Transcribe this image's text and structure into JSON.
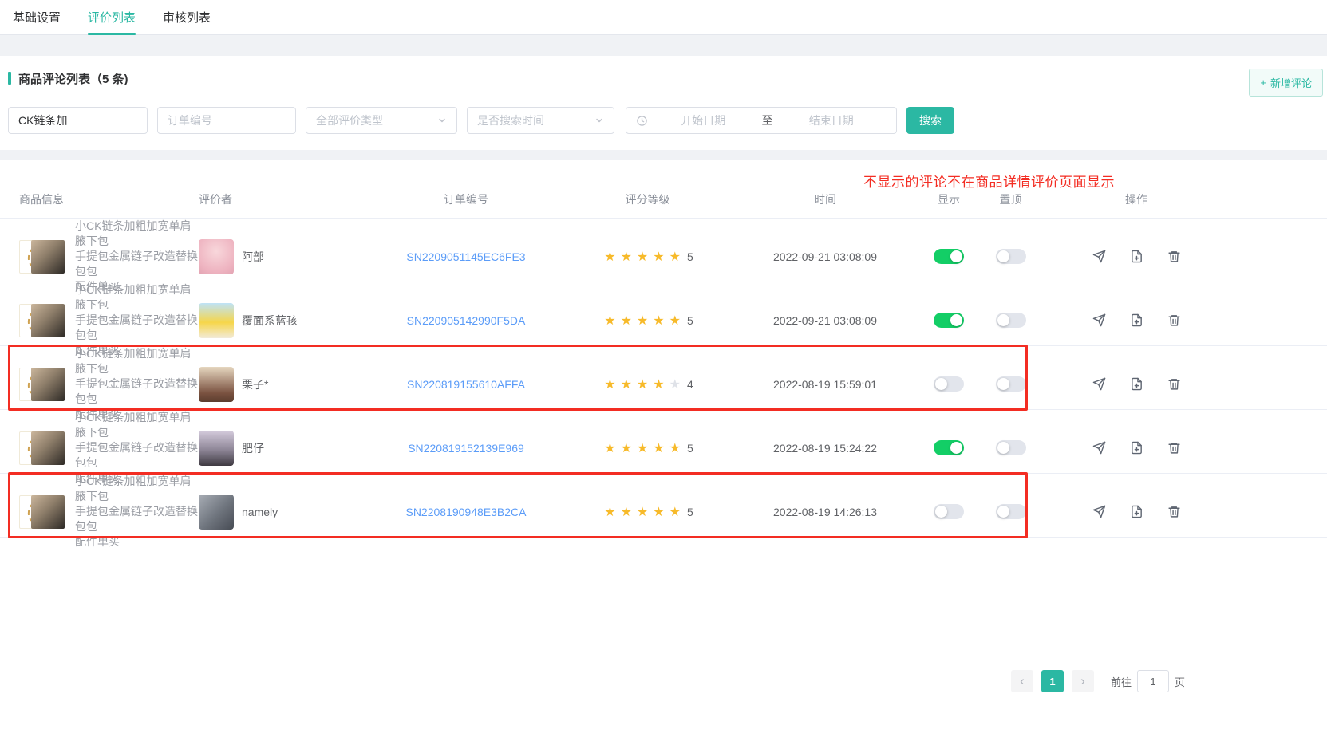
{
  "tabs": [
    {
      "label": "基础设置",
      "active": false
    },
    {
      "label": "评价列表",
      "active": true
    },
    {
      "label": "审核列表",
      "active": false
    }
  ],
  "panel": {
    "title": "商品评论列表（5 条)",
    "add_button_label": "新增评论"
  },
  "filters": {
    "keyword_value": "CK链条加",
    "order_placeholder": "订单编号",
    "type_select_value": "全部评价类型",
    "time_select_value": "是否搜索时间",
    "date_start_placeholder": "开始日期",
    "date_separator": "至",
    "date_end_placeholder": "结束日期",
    "search_button_label": "搜索"
  },
  "table": {
    "annotation": "不显示的评论不在商品详情评价页面显示",
    "columns": [
      "商品信息",
      "评价者",
      "订单编号",
      "评分等级",
      "时间",
      "显示",
      "置顶",
      "操作"
    ],
    "product": {
      "line1": "小CK链条加粗加宽单肩腋下包",
      "line2": "手提包金属链子改造替换包包",
      "line3": "配件单买"
    },
    "rows": [
      {
        "reviewer": "阿部",
        "order": "SN2209051145EC6FE3",
        "rating": 5,
        "time": "2022-09-21 03:08:09",
        "show": true,
        "top": false,
        "highlighted": false
      },
      {
        "reviewer": "覆面系蓝孩",
        "order": "SN220905142990F5DA",
        "rating": 5,
        "time": "2022-09-21 03:08:09",
        "show": true,
        "top": false,
        "highlighted": false
      },
      {
        "reviewer": "栗子*",
        "order": "SN220819155610AFFA",
        "rating": 4,
        "time": "2022-08-19 15:59:01",
        "show": false,
        "top": false,
        "highlighted": true
      },
      {
        "reviewer": "肥仔",
        "order": "SN220819152139E969",
        "rating": 5,
        "time": "2022-08-19 15:24:22",
        "show": true,
        "top": false,
        "highlighted": false
      },
      {
        "reviewer": "namely",
        "order": "SN2208190948E3B2CA",
        "rating": 5,
        "time": "2022-08-19 14:26:13",
        "show": false,
        "top": false,
        "highlighted": false,
        "highlighted_fix": true
      }
    ]
  },
  "pagination": {
    "prev": "‹",
    "current_page": "1",
    "next": "›",
    "goto_label": "前往",
    "goto_value": "1",
    "page_suffix": "页"
  },
  "glyphs": {
    "plus": "+",
    "star": "★"
  },
  "icons": [
    "plus-icon",
    "chevron-down-icon",
    "clock-icon",
    "star-icon",
    "send-icon",
    "file-plus-icon",
    "delete-icon",
    "prev-page-icon",
    "next-page-icon"
  ],
  "colors": {
    "accent_teal": "#2bb8a3",
    "toggle_on_green": "#13ce66",
    "link_blue": "#5b9cf8",
    "star_orange": "#f7ba2a",
    "annotation_red": "#f32d23"
  }
}
